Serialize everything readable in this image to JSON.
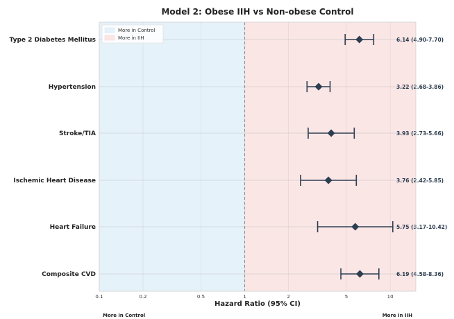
{
  "chart_data": {
    "type": "forest",
    "title": "Model 2: Obese IIH vs Non-obese Control",
    "xlabel": "Hazard Ratio (95% CI)",
    "xscale": "log",
    "xlim": [
      0.1,
      15
    ],
    "xticks": [
      0.1,
      0.2,
      0.5,
      1,
      2,
      5,
      10
    ],
    "xtick_labels": [
      "0.1",
      "0.2",
      "0.5",
      "1",
      "2",
      "5",
      "10"
    ],
    "reference_line": 1,
    "legend": {
      "position": "top-left",
      "entries": [
        {
          "label": "More in Control",
          "color": "#e6f2fa"
        },
        {
          "label": "More in IIH",
          "color": "#fbe6e6"
        }
      ]
    },
    "side_labels": {
      "left": "More in Control",
      "right": "More in IIH"
    },
    "marker_color": "#2c3e50",
    "rows": [
      {
        "label": "Type 2 Diabetes Mellitus",
        "hr": 6.14,
        "lo": 4.9,
        "hi": 7.7,
        "text": "6.14 (4.90-7.70)"
      },
      {
        "label": "Hypertension",
        "hr": 3.22,
        "lo": 2.68,
        "hi": 3.86,
        "text": "3.22 (2.68-3.86)"
      },
      {
        "label": "Stroke/TIA",
        "hr": 3.93,
        "lo": 2.73,
        "hi": 5.66,
        "text": "3.93 (2.73-5.66)"
      },
      {
        "label": "Ischemic Heart Disease",
        "hr": 3.76,
        "lo": 2.42,
        "hi": 5.85,
        "text": "3.76 (2.42-5.85)"
      },
      {
        "label": "Heart Failure",
        "hr": 5.75,
        "lo": 3.17,
        "hi": 10.42,
        "text": "5.75 (3.17-10.42)"
      },
      {
        "label": "Composite CVD",
        "hr": 6.19,
        "lo": 4.58,
        "hi": 8.36,
        "text": "6.19 (4.58-8.36)"
      }
    ]
  }
}
